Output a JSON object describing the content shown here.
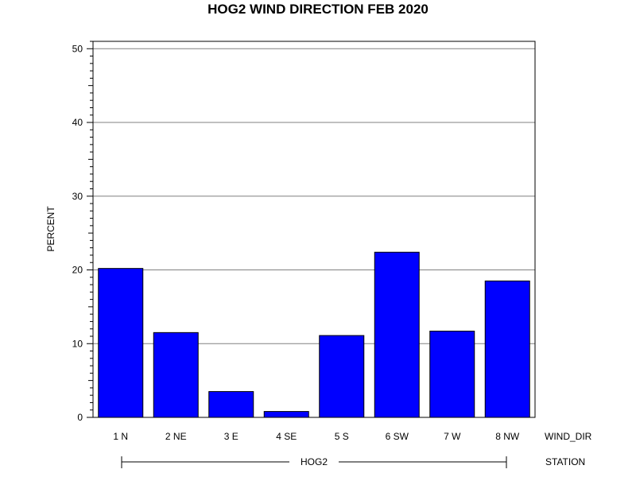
{
  "chart_data": {
    "type": "bar",
    "title": "HOG2 WIND DIRECTION FEB 2020",
    "ylabel": "PERCENT",
    "xlabel": "WIND_DIR",
    "group_axis_label": "STATION",
    "group_label": "HOG2",
    "categories": [
      "1 N",
      "2 NE",
      "3 E",
      "4 SE",
      "5 S",
      "6 SW",
      "7 W",
      "8 NW"
    ],
    "values": [
      20.2,
      11.5,
      3.5,
      0.8,
      11.1,
      22.4,
      11.7,
      18.5
    ],
    "ylim": [
      0,
      51
    ],
    "yticks": [
      "0",
      "10",
      "20",
      "30",
      "40",
      "50"
    ],
    "grid": true,
    "bar_color": "#0000ff"
  }
}
